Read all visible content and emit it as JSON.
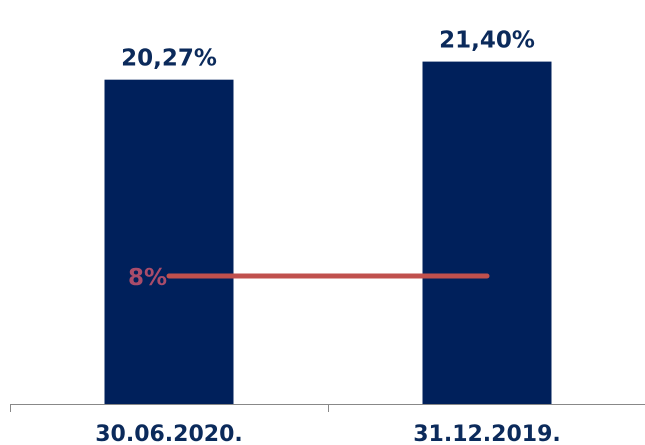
{
  "chart_data": {
    "type": "bar",
    "categories": [
      "30.06.2020.",
      "31.12.2019."
    ],
    "values": [
      20.27,
      21.4
    ],
    "value_labels": [
      "20,27%",
      "21,40%"
    ],
    "reference_line": {
      "value": 8,
      "label": "8%"
    },
    "title": "",
    "xlabel": "",
    "ylabel": "",
    "ylim": [
      0,
      24
    ],
    "grid": false,
    "legend": "none"
  },
  "colors": {
    "bar": "#00205b",
    "reference_line": "#c0504d",
    "reference_label": "#a94c6a",
    "text": "#0b2a5b",
    "axis": "#888888"
  }
}
